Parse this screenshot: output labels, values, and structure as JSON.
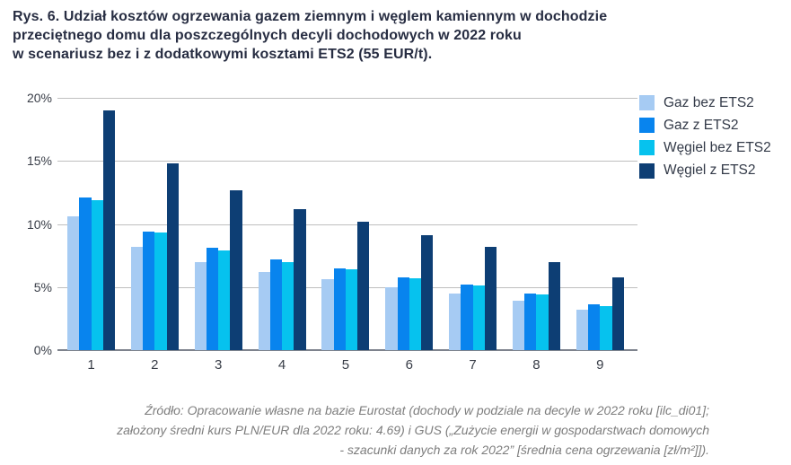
{
  "figure": {
    "title_lines": [
      "Rys. 6. Udział kosztów ogrzewania gazem ziemnym i węglem kamiennym w dochodzie",
      "przeciętnego domu dla poszczególnych decyli dochodowych w 2022 roku",
      "w scenariusz bez i z dodatkowymi kosztami ETS2 (55 EUR/t)."
    ]
  },
  "chart_data": {
    "type": "bar",
    "categories": [
      "1",
      "2",
      "3",
      "4",
      "5",
      "6",
      "7",
      "8",
      "9"
    ],
    "series": [
      {
        "name": "Gaz bez ETS2",
        "color": "#a6cbf3",
        "values": [
          10.6,
          8.2,
          7.0,
          6.2,
          5.6,
          5.0,
          4.5,
          3.9,
          3.2
        ]
      },
      {
        "name": "Gaz z ETS2",
        "color": "#0884ee",
        "values": [
          12.1,
          9.4,
          8.1,
          7.2,
          6.5,
          5.8,
          5.2,
          4.5,
          3.6
        ]
      },
      {
        "name": "Węgiel bez ETS2",
        "color": "#06c2ee",
        "values": [
          11.9,
          9.3,
          7.9,
          7.0,
          6.4,
          5.7,
          5.1,
          4.4,
          3.5
        ]
      },
      {
        "name": "Węgiel z ETS2",
        "color": "#0d3e74",
        "values": [
          19.0,
          14.8,
          12.7,
          11.2,
          10.2,
          9.1,
          8.2,
          7.0,
          5.8
        ]
      }
    ],
    "title": "",
    "xlabel": "",
    "ylabel": "",
    "ylim": [
      0,
      20
    ],
    "ytick_values": [
      0,
      5,
      10,
      15,
      20
    ],
    "ytick_labels": [
      "0%",
      "5%",
      "10%",
      "15%",
      "20%"
    ],
    "grid": true,
    "legend_position": "top-right"
  },
  "source_lines": [
    "Źródło: Opracowanie własne na bazie Eurostat (dochody w podziale na decyle w 2022 roku [ilc_di01];",
    "założony średni kurs PLN/EUR dla 2022 roku: 4.69) i GUS („Zużycie energii w gospodarstwach domowych",
    "- szacunki danych za rok 2022” [średnia cena ogrzewania [zł/m²]])."
  ]
}
